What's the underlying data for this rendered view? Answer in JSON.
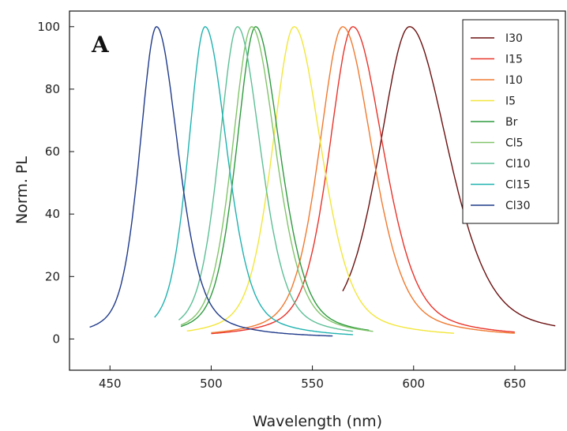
{
  "chart_data": {
    "type": "line",
    "panel_label": "A",
    "xlabel": "Wavelength (nm)",
    "ylabel": "Norm. PL",
    "xlim": [
      430,
      675
    ],
    "ylim": [
      -10,
      105
    ],
    "xticks": [
      450,
      500,
      550,
      600,
      650
    ],
    "yticks": [
      0,
      20,
      40,
      60,
      80,
      100
    ],
    "grid": false,
    "legend_position": "top-right",
    "series": [
      {
        "name": "I30",
        "color": "#6b1010",
        "peak": 598,
        "fwhm": 34,
        "xmin": 565,
        "xmax": 670,
        "floor": 1.0,
        "left_scale": 1.05,
        "right_scale": 1.35
      },
      {
        "name": "I15",
        "color": "#e8332a",
        "peak": 570,
        "fwhm": 28,
        "xmin": 500,
        "xmax": 650,
        "floor": 0.5,
        "left_scale": 1.0,
        "right_scale": 1.3
      },
      {
        "name": "I10",
        "color": "#f07a30",
        "peak": 565,
        "fwhm": 28,
        "xmin": 500,
        "xmax": 650,
        "floor": 0.5,
        "left_scale": 1.0,
        "right_scale": 1.25
      },
      {
        "name": "I5",
        "color": "#f2e63a",
        "peak": 541,
        "fwhm": 26,
        "xmin": 488,
        "xmax": 620,
        "floor": 0.5,
        "left_scale": 1.0,
        "right_scale": 1.25
      },
      {
        "name": "Br",
        "color": "#2e9a3f",
        "peak": 522,
        "fwhm": 23,
        "xmin": 485,
        "xmax": 578,
        "floor": 0.5,
        "left_scale": 1.0,
        "right_scale": 1.25
      },
      {
        "name": "Cl5",
        "color": "#82c46a",
        "peak": 520,
        "fwhm": 23,
        "xmin": 485,
        "xmax": 580,
        "floor": 0.5,
        "left_scale": 1.0,
        "right_scale": 1.25
      },
      {
        "name": "Cl10",
        "color": "#5dbf96",
        "peak": 513,
        "fwhm": 22,
        "xmin": 484,
        "xmax": 570,
        "floor": 0.5,
        "left_scale": 1.0,
        "right_scale": 1.25
      },
      {
        "name": "Cl15",
        "color": "#1fb2b0",
        "peak": 497,
        "fwhm": 20,
        "xmin": 472,
        "xmax": 570,
        "floor": 0.5,
        "left_scale": 1.0,
        "right_scale": 1.3
      },
      {
        "name": "Cl30",
        "color": "#1f3a8a",
        "peak": 473,
        "fwhm": 19,
        "xmin": 440,
        "xmax": 560,
        "floor": 0.5,
        "left_scale": 1.05,
        "right_scale": 1.35
      }
    ]
  }
}
